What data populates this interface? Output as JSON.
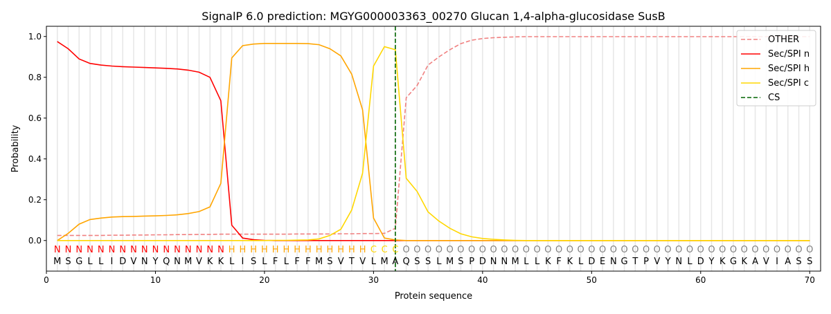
{
  "chart_data": {
    "type": "line",
    "title": "SignalP 6.0 prediction: MGYG000003363_00270 Glucan 1,4-alpha-glucosidase SusB",
    "xlabel": "Protein sequence",
    "ylabel": "Probability",
    "xlim": [
      0,
      71
    ],
    "ylim": [
      -0.15,
      1.05
    ],
    "xticks": [
      0,
      10,
      20,
      30,
      40,
      50,
      60,
      70
    ],
    "yticks": [
      "0.0",
      "0.2",
      "0.4",
      "0.6",
      "0.8",
      "1.0"
    ],
    "legend_position": "top-right",
    "sequence": [
      "M",
      "S",
      "G",
      "L",
      "L",
      "I",
      "D",
      "V",
      "N",
      "Y",
      "Q",
      "N",
      "M",
      "V",
      "K",
      "K",
      "L",
      "I",
      "S",
      "L",
      "F",
      "L",
      "F",
      "F",
      "M",
      "S",
      "V",
      "T",
      "V",
      "L",
      "M",
      "A",
      "Q",
      "S",
      "S",
      "L",
      "M",
      "S",
      "P",
      "D",
      "N",
      "N",
      "M",
      "L",
      "L",
      "K",
      "F",
      "K",
      "L",
      "D",
      "E",
      "N",
      "G",
      "T",
      "P",
      "V",
      "Y",
      "N",
      "L",
      "D",
      "Y",
      "K",
      "G",
      "K",
      "A",
      "V",
      "I",
      "A",
      "S",
      "S"
    ],
    "labels": [
      "N",
      "N",
      "N",
      "N",
      "N",
      "N",
      "N",
      "N",
      "N",
      "N",
      "N",
      "N",
      "N",
      "N",
      "N",
      "N",
      "H",
      "H",
      "H",
      "H",
      "H",
      "H",
      "H",
      "H",
      "H",
      "H",
      "H",
      "H",
      "H",
      "C",
      "C",
      "C",
      "O",
      "O",
      "O",
      "O",
      "O",
      "O",
      "O",
      "O",
      "O",
      "O",
      "O",
      "O",
      "O",
      "O",
      "O",
      "O",
      "O",
      "O",
      "O",
      "O",
      "O",
      "O",
      "O",
      "O",
      "O",
      "O",
      "O",
      "O",
      "O",
      "O",
      "O",
      "O",
      "O",
      "O",
      "O",
      "O",
      "O",
      "O"
    ],
    "label_colors": {
      "N": "#ff0000",
      "H": "#ffa500",
      "C": "#ffd700",
      "O": "#808080"
    },
    "cs_position": 32,
    "cs_label": "CS",
    "series": [
      {
        "name": "OTHER",
        "color": "#f08080",
        "dash": true,
        "values": [
          0.025,
          0.025,
          0.025,
          0.025,
          0.025,
          0.026,
          0.026,
          0.027,
          0.027,
          0.028,
          0.028,
          0.029,
          0.029,
          0.03,
          0.03,
          0.031,
          0.031,
          0.031,
          0.031,
          0.031,
          0.031,
          0.031,
          0.032,
          0.032,
          0.032,
          0.032,
          0.033,
          0.033,
          0.034,
          0.034,
          0.035,
          0.06,
          0.7,
          0.76,
          0.86,
          0.9,
          0.935,
          0.965,
          0.982,
          0.99,
          0.994,
          0.996,
          0.998,
          0.999,
          0.999,
          0.999,
          0.999,
          0.999,
          0.999,
          0.999,
          0.999,
          0.999,
          0.999,
          0.999,
          0.999,
          0.999,
          0.999,
          0.999,
          0.999,
          0.999,
          0.999,
          0.999,
          0.999,
          0.999,
          0.999,
          0.999,
          0.999,
          0.999,
          0.999,
          0.999
        ]
      },
      {
        "name": "Sec/SPI n",
        "color": "#ff0000",
        "values": [
          0.975,
          0.94,
          0.89,
          0.868,
          0.86,
          0.855,
          0.852,
          0.85,
          0.848,
          0.846,
          0.844,
          0.841,
          0.835,
          0.825,
          0.8,
          0.685,
          0.075,
          0.012,
          0.004,
          0.001,
          0,
          0,
          0,
          0,
          0,
          0,
          0,
          0,
          0,
          0,
          0,
          0,
          0,
          0,
          0,
          0,
          0,
          0,
          0,
          0,
          0,
          0,
          0,
          0,
          0,
          0,
          0,
          0,
          0,
          0,
          0,
          0,
          0,
          0,
          0,
          0,
          0,
          0,
          0,
          0,
          0,
          0,
          0,
          0,
          0,
          0,
          0,
          0,
          0,
          0
        ]
      },
      {
        "name": "Sec/SPI h",
        "color": "#ffa500",
        "values": [
          0,
          0.035,
          0.08,
          0.103,
          0.11,
          0.115,
          0.117,
          0.118,
          0.12,
          0.121,
          0.123,
          0.126,
          0.132,
          0.142,
          0.165,
          0.28,
          0.895,
          0.955,
          0.963,
          0.966,
          0.966,
          0.966,
          0.966,
          0.965,
          0.96,
          0.94,
          0.905,
          0.815,
          0.64,
          0.11,
          0.012,
          0.003,
          0,
          0,
          0,
          0,
          0,
          0,
          0,
          0,
          0,
          0,
          0,
          0,
          0,
          0,
          0,
          0,
          0,
          0,
          0,
          0,
          0,
          0,
          0,
          0,
          0,
          0,
          0,
          0,
          0,
          0,
          0,
          0,
          0,
          0,
          0,
          0,
          0,
          0
        ]
      },
      {
        "name": "Sec/SPI c",
        "color": "#ffd700",
        "values": [
          0,
          0,
          0,
          0,
          0,
          0,
          0,
          0,
          0,
          0,
          0,
          0,
          0,
          0,
          0,
          0,
          0,
          0,
          0,
          0,
          0.001,
          0.001,
          0.002,
          0.003,
          0.008,
          0.025,
          0.055,
          0.15,
          0.33,
          0.855,
          0.95,
          0.935,
          0.305,
          0.24,
          0.14,
          0.095,
          0.06,
          0.033,
          0.018,
          0.01,
          0.006,
          0.003,
          0.001,
          0,
          0,
          0,
          0,
          0,
          0,
          0,
          0,
          0,
          0,
          0,
          0,
          0,
          0,
          0,
          0,
          0,
          0,
          0,
          0,
          0,
          0,
          0,
          0,
          0,
          0,
          0
        ]
      }
    ]
  }
}
